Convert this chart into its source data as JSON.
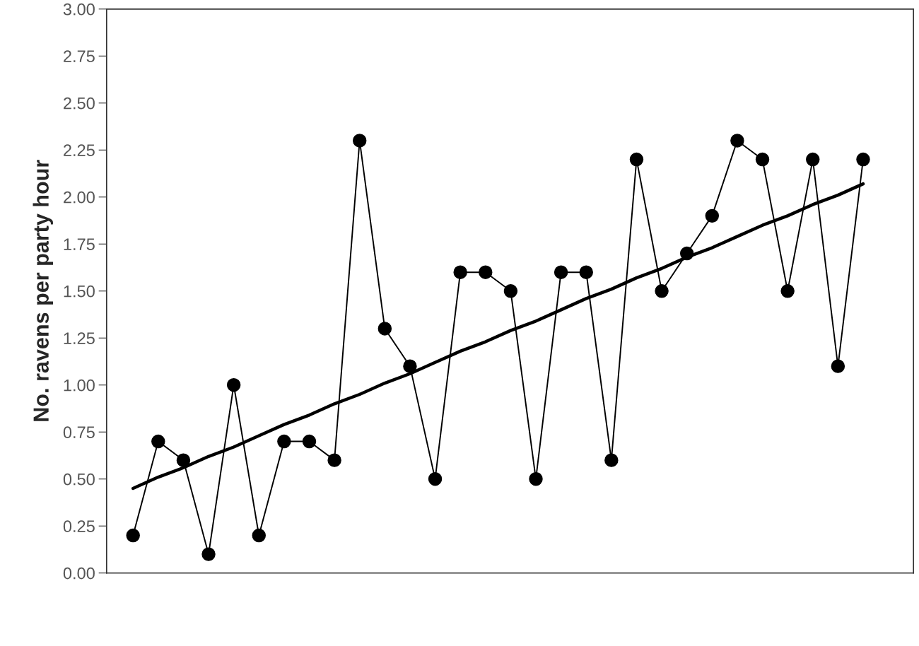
{
  "chart_data": {
    "type": "line",
    "ylabel": "No. ravens per party hour",
    "categories": [
      null,
      null,
      null,
      null,
      null,
      null,
      null,
      null,
      null,
      null,
      null,
      null,
      null,
      null,
      null,
      null,
      null,
      null,
      null,
      null,
      null,
      null,
      null,
      null,
      null,
      null,
      null,
      null,
      null,
      null
    ],
    "ylim": [
      0,
      3
    ],
    "yticks": [
      {
        "value": 0,
        "label": "0.00"
      },
      {
        "value": 0.25,
        "label": "0.25"
      },
      {
        "value": 0.5,
        "label": "0.50"
      },
      {
        "value": 0.75,
        "label": "0.75"
      },
      {
        "value": 1,
        "label": "1.00"
      },
      {
        "value": 1.25,
        "label": "1.25"
      },
      {
        "value": 1.5,
        "label": "1.50"
      },
      {
        "value": 1.75,
        "label": "1.75"
      },
      {
        "value": 2,
        "label": "2.00"
      },
      {
        "value": 2.25,
        "label": "2.25"
      },
      {
        "value": 2.5,
        "label": "2.50"
      },
      {
        "value": 2.75,
        "label": "2.75"
      },
      {
        "value": 3,
        "label": "3.00"
      }
    ],
    "series": [
      {
        "color": "#000000",
        "marker": "circle",
        "line_style": "solid",
        "values": [
          0.2,
          0.7,
          0.6,
          0.1,
          1.0,
          0.2,
          0.7,
          0.7,
          0.6,
          2.3,
          1.3,
          1.1,
          0.5,
          1.6,
          1.6,
          1.5,
          0.5,
          1.6,
          1.6,
          0.6,
          2.2,
          1.5,
          1.7,
          1.9,
          2.3,
          2.2,
          1.5,
          2.2,
          1.1,
          2.2
        ]
      },
      {
        "type": "line",
        "color": "#000000",
        "marker": "none",
        "line_style": "solid",
        "values": [
          0.45,
          0.51,
          0.56,
          0.62,
          0.67,
          0.73,
          0.79,
          0.84,
          0.9,
          0.95,
          1.01,
          1.06,
          1.12,
          1.18,
          1.23,
          1.29,
          1.34,
          1.4,
          1.46,
          1.51,
          1.57,
          1.62,
          1.68,
          1.73,
          1.79,
          1.85,
          1.9,
          1.96,
          2.01,
          2.07
        ]
      }
    ]
  }
}
